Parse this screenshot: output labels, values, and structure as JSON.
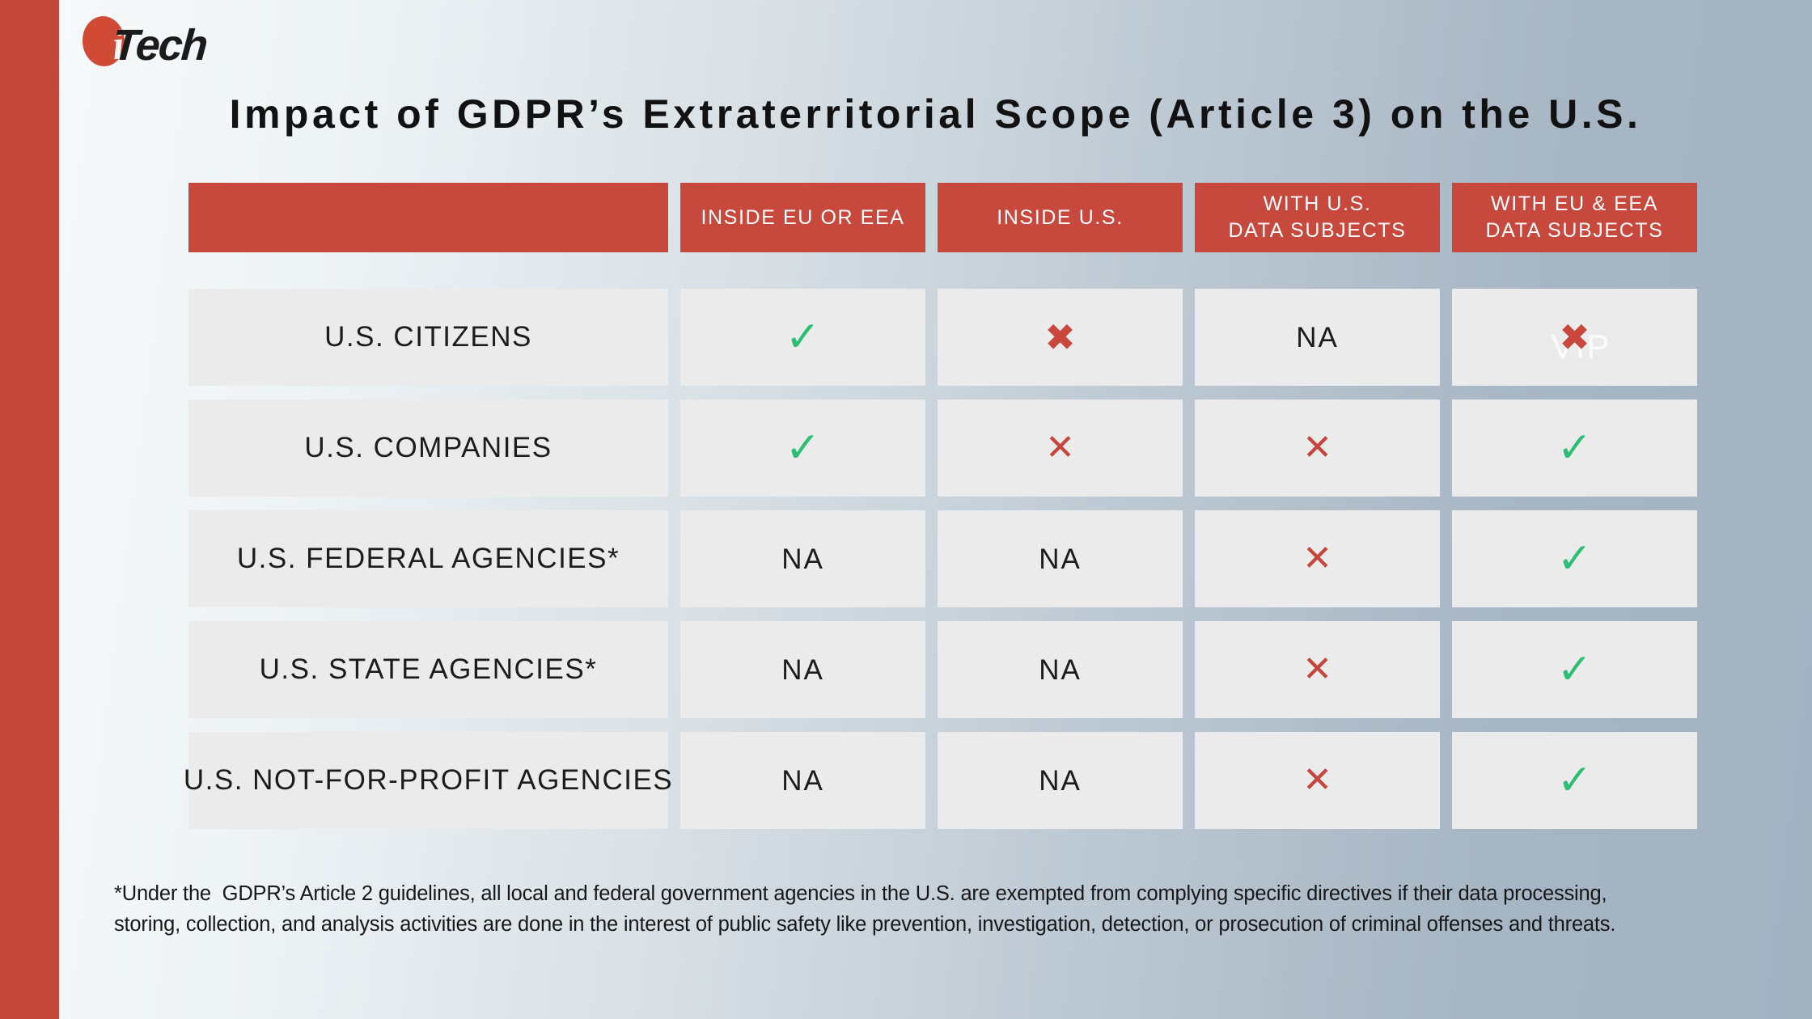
{
  "logo": {
    "i": "i",
    "name": "Tech"
  },
  "title": "Impact of GDPR’s Extraterritorial Scope (Article 3) on the U.S.",
  "table": {
    "headers": [
      {
        "line1": "",
        "line2": ""
      },
      {
        "line1": "INSIDE EU OR EEA",
        "line2": ""
      },
      {
        "line1": "INSIDE U.S.",
        "line2": ""
      },
      {
        "line1": "WITH U.S.",
        "line2": "DATA SUBJECTS"
      },
      {
        "line1": "WITH EU & EEA",
        "line2": "DATA SUBJECTS"
      }
    ],
    "rows": [
      {
        "label": "U.S. CITIZENS",
        "cells": [
          {
            "kind": "check",
            "glyph": "✓"
          },
          {
            "kind": "cross-bold",
            "glyph": "✖"
          },
          {
            "kind": "na",
            "glyph": "NA"
          },
          {
            "kind": "cross-bold",
            "glyph": "✖",
            "watermark": "VIP"
          }
        ]
      },
      {
        "label": "U.S. COMPANIES",
        "cells": [
          {
            "kind": "check",
            "glyph": "✓"
          },
          {
            "kind": "cross",
            "glyph": "✕"
          },
          {
            "kind": "cross",
            "glyph": "✕"
          },
          {
            "kind": "check",
            "glyph": "✓"
          }
        ]
      },
      {
        "label": "U.S. FEDERAL AGENCIES*",
        "cells": [
          {
            "kind": "na",
            "glyph": "NA"
          },
          {
            "kind": "na",
            "glyph": "NA"
          },
          {
            "kind": "cross",
            "glyph": "✕"
          },
          {
            "kind": "check",
            "glyph": "✓"
          }
        ]
      },
      {
        "label": "U.S. STATE AGENCIES*",
        "cells": [
          {
            "kind": "na",
            "glyph": "NA"
          },
          {
            "kind": "na",
            "glyph": "NA"
          },
          {
            "kind": "cross",
            "glyph": "✕"
          },
          {
            "kind": "check",
            "glyph": "✓"
          }
        ]
      },
      {
        "label": "U.S. NOT-FOR-PROFIT AGENCIES",
        "cells": [
          {
            "kind": "na",
            "glyph": "NA"
          },
          {
            "kind": "na",
            "glyph": "NA"
          },
          {
            "kind": "cross",
            "glyph": "✕"
          },
          {
            "kind": "check",
            "glyph": "✓"
          }
        ]
      }
    ]
  },
  "footnote": {
    "line1": "*Under the  GDPR’s Article 2 guidelines, all local and federal government agencies in the U.S. are exempted from complying specific directives if their data processing,",
    "line2": "storing, collection, and analysis activities are done in the interest of public safety like prevention, investigation, detection, or prosecution of criminal offenses and threats."
  },
  "colors": {
    "accent_red": "#c7483d",
    "logo_red": "#d04a36",
    "check_green": "#2cbf74",
    "cross_red": "#c9473c",
    "cell_gray": "#ebebeb",
    "bg_left": "#f8fbfb",
    "bg_right": "#a2b2c1"
  },
  "chart_data": {
    "type": "table",
    "title": "Impact of GDPR’s Extraterritorial Scope (Article 3) on the U.S.",
    "columns": [
      "",
      "INSIDE EU OR EEA",
      "INSIDE U.S.",
      "WITH U.S. DATA SUBJECTS",
      "WITH EU & EEA DATA SUBJECTS"
    ],
    "rows": [
      {
        "label": "U.S. CITIZENS",
        "values": [
          "check",
          "cross",
          "NA",
          "cross"
        ]
      },
      {
        "label": "U.S. COMPANIES",
        "values": [
          "check",
          "cross",
          "cross",
          "check"
        ]
      },
      {
        "label": "U.S. FEDERAL AGENCIES*",
        "values": [
          "NA",
          "NA",
          "cross",
          "check"
        ]
      },
      {
        "label": "U.S. STATE AGENCIES*",
        "values": [
          "NA",
          "NA",
          "cross",
          "check"
        ]
      },
      {
        "label": "U.S. NOT-FOR-PROFIT AGENCIES",
        "values": [
          "NA",
          "NA",
          "cross",
          "check"
        ]
      }
    ]
  }
}
